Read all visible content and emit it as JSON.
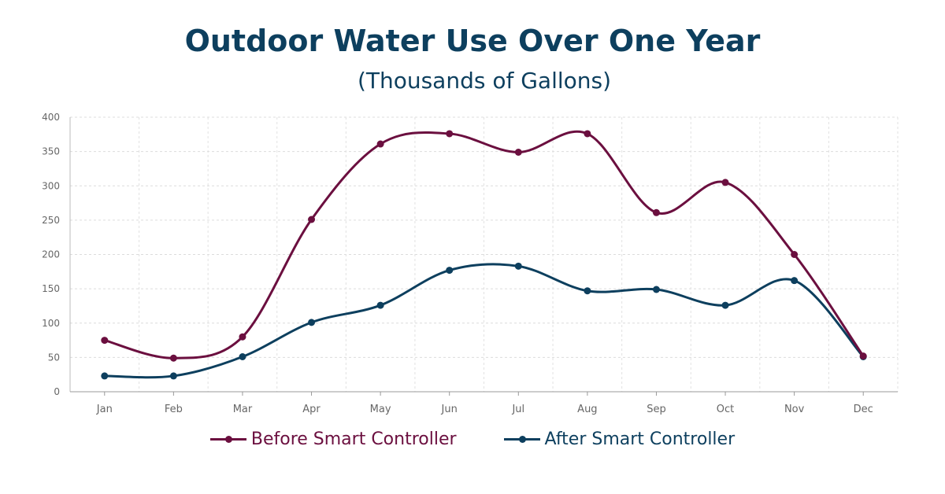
{
  "chart_data": {
    "type": "line",
    "title": "Outdoor Water Use Over One Year",
    "subtitle": "(Thousands of Gallons)",
    "categories": [
      "Jan",
      "Feb",
      "Mar",
      "Apr",
      "May",
      "Jun",
      "Jul",
      "Aug",
      "Sep",
      "Oct",
      "Nov",
      "Dec"
    ],
    "ylim": [
      0,
      400
    ],
    "yticks": [
      "0",
      "50",
      "100",
      "150",
      "200",
      "250",
      "300",
      "350",
      "400"
    ],
    "grid": true,
    "legend_position": "bottom",
    "series": [
      {
        "name": "Before Smart Controller",
        "color": "#6b0f3f",
        "values": [
          75,
          49,
          80,
          251,
          361,
          376,
          349,
          376,
          261,
          305,
          200,
          52
        ]
      },
      {
        "name": "After Smart Controller",
        "color": "#0d3f5e",
        "values": [
          23,
          23,
          51,
          101,
          126,
          177,
          183,
          147,
          149,
          126,
          162,
          51
        ]
      }
    ]
  }
}
